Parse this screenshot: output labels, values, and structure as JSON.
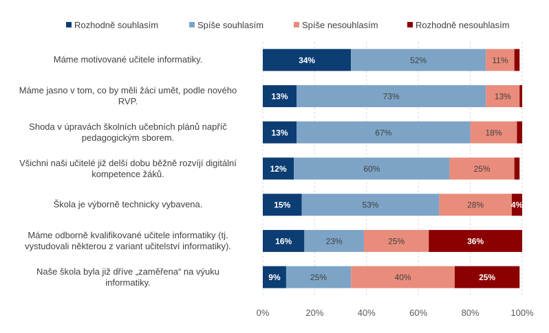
{
  "chart_data": {
    "type": "bar",
    "orientation": "horizontal",
    "stacked": true,
    "categories": [
      "Máme motivované učitele informatiky.",
      "Máme jasno v tom, co by měli žáci umět, podle nového RVP.",
      "Shoda v úpravách školních učebních plánů napříč pedagogickým sborem.",
      "Všichni naši učitelé již delší dobu běžně rozvíjí digitální kompetence žáků.",
      "Škola je výborně technicky vybavena.",
      "Máme odborně kvalifikované učitele informatiky (tj. vystudovali některou z  variant učitelství informatiky).",
      "Naše škola byla již dříve „zaměřena“ na výuku informatiky."
    ],
    "category_lines": [
      [
        "Máme motivované učitele informatiky."
      ],
      [
        "Máme jasno v tom, co by měli žáci umět, podle nového",
        "RVP."
      ],
      [
        "Shoda v úpravách školních učebních plánů napříč",
        "pedagogickým sborem."
      ],
      [
        "Všichni naši učitelé již delší dobu běžně rozvíjí digitální",
        "kompetence žáků."
      ],
      [
        "Škola je výborně technicky vybavena."
      ],
      [
        "Máme odborně kvalifikované učitele informatiky (tj.",
        "vystudovali některou z  variant učitelství informatiky)."
      ],
      [
        "Naše škola byla již dříve „zaměřena“ na výuku",
        "informatiky."
      ]
    ],
    "series": [
      {
        "name": "Rozhodně souhlasím",
        "color": "#0c3d73",
        "label_color": "#ffffff",
        "label_bold": true,
        "values": [
          34,
          13,
          13,
          12,
          15,
          16,
          9
        ],
        "labels": [
          "34%",
          "13%",
          "13%",
          "12%",
          "15%",
          "16%",
          "9%"
        ]
      },
      {
        "name": "Spíše souhlasím",
        "color": "#7da4c6",
        "label_color": "#404040",
        "label_bold": false,
        "values": [
          52,
          73,
          67,
          60,
          53,
          23,
          25
        ],
        "labels": [
          "52%",
          "73%",
          "67%",
          "60%",
          "53%",
          "23%",
          "25%"
        ]
      },
      {
        "name": "Spíše nesouhlasím",
        "color": "#e98c7c",
        "label_color": "#404040",
        "label_bold": false,
        "values": [
          11,
          13,
          18,
          25,
          28,
          25,
          40
        ],
        "labels": [
          "11%",
          "13%",
          "18%",
          "25%",
          "28%",
          "25%",
          "40%"
        ]
      },
      {
        "name": "Rozhodně nesouhlasím",
        "color": "#8b0000",
        "label_color": "#ffffff",
        "label_bold": true,
        "values": [
          2,
          1,
          2,
          2,
          4,
          36,
          25
        ],
        "labels": [
          "",
          "",
          "",
          "",
          "4%",
          "36%",
          "25%"
        ]
      }
    ],
    "xlim": [
      0,
      100
    ],
    "xticks": [
      "0%",
      "20%",
      "40%",
      "60%",
      "80%",
      "100%"
    ],
    "grid": true,
    "legend_position": "top"
  }
}
